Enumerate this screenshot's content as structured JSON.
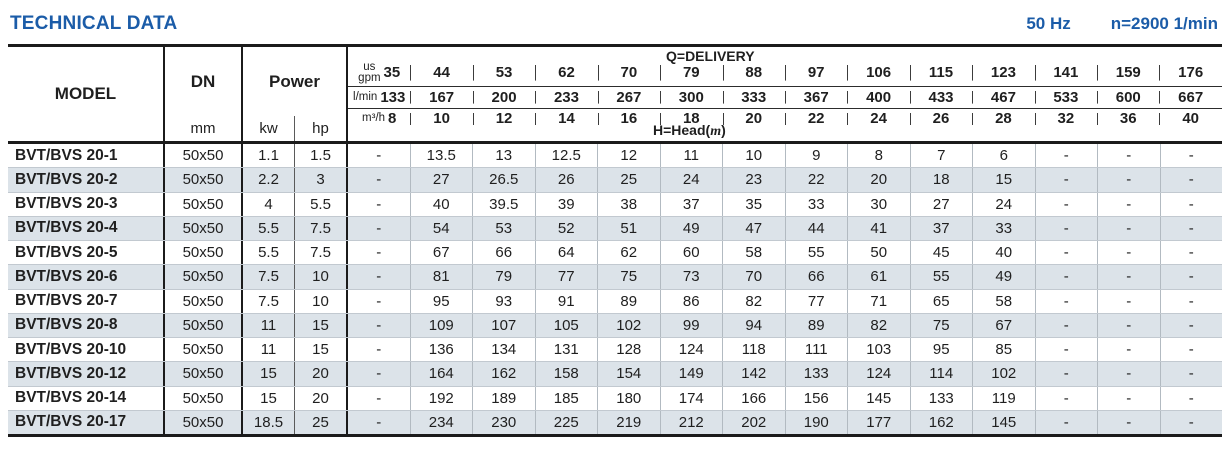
{
  "header": {
    "title": "TECHNICAL DATA",
    "frequency": "50 Hz",
    "speed": "n=2900 1/min"
  },
  "colors": {
    "accent_blue": "#1b5ca8",
    "row_alt": "#dce3e9"
  },
  "table": {
    "model_header": "MODEL",
    "dn_header": "DN",
    "dn_unit": "mm",
    "power_header": "Power",
    "power_unit_kw": "kw",
    "power_unit_hp": "hp",
    "delivery_label": "Q=DELIVERY",
    "head_label_prefix": "H=Head(",
    "head_label_m": "m",
    "head_label_suffix": ")",
    "flow_rows": [
      {
        "unit": "us\ngpm",
        "values": [
          "35",
          "44",
          "53",
          "62",
          "70",
          "79",
          "88",
          "97",
          "106",
          "115",
          "123",
          "141",
          "159",
          "176"
        ]
      },
      {
        "unit": "l/min",
        "values": [
          "133",
          "167",
          "200",
          "233",
          "267",
          "300",
          "333",
          "367",
          "400",
          "433",
          "467",
          "533",
          "600",
          "667"
        ]
      },
      {
        "unit": "m³/h",
        "values": [
          "8",
          "10",
          "12",
          "14",
          "16",
          "18",
          "20",
          "22",
          "24",
          "26",
          "28",
          "32",
          "36",
          "40"
        ]
      }
    ],
    "rows": [
      {
        "model": "BVT/BVS 20-1",
        "dn": "50x50",
        "kw": "1.1",
        "hp": "1.5",
        "head": [
          "-",
          "13.5",
          "13",
          "12.5",
          "12",
          "11",
          "10",
          "9",
          "8",
          "7",
          "6",
          "-",
          "-",
          "-"
        ]
      },
      {
        "model": "BVT/BVS 20-2",
        "dn": "50x50",
        "kw": "2.2",
        "hp": "3",
        "head": [
          "-",
          "27",
          "26.5",
          "26",
          "25",
          "24",
          "23",
          "22",
          "20",
          "18",
          "15",
          "-",
          "-",
          "-"
        ]
      },
      {
        "model": "BVT/BVS 20-3",
        "dn": "50x50",
        "kw": "4",
        "hp": "5.5",
        "head": [
          "-",
          "40",
          "39.5",
          "39",
          "38",
          "37",
          "35",
          "33",
          "30",
          "27",
          "24",
          "-",
          "-",
          "-"
        ]
      },
      {
        "model": "BVT/BVS 20-4",
        "dn": "50x50",
        "kw": "5.5",
        "hp": "7.5",
        "head": [
          "-",
          "54",
          "53",
          "52",
          "51",
          "49",
          "47",
          "44",
          "41",
          "37",
          "33",
          "-",
          "-",
          "-"
        ]
      },
      {
        "model": "BVT/BVS 20-5",
        "dn": "50x50",
        "kw": "5.5",
        "hp": "7.5",
        "head": [
          "-",
          "67",
          "66",
          "64",
          "62",
          "60",
          "58",
          "55",
          "50",
          "45",
          "40",
          "-",
          "-",
          "-"
        ]
      },
      {
        "model": "BVT/BVS 20-6",
        "dn": "50x50",
        "kw": "7.5",
        "hp": "10",
        "head": [
          "-",
          "81",
          "79",
          "77",
          "75",
          "73",
          "70",
          "66",
          "61",
          "55",
          "49",
          "-",
          "-",
          "-"
        ]
      },
      {
        "model": "BVT/BVS 20-7",
        "dn": "50x50",
        "kw": "7.5",
        "hp": "10",
        "head": [
          "-",
          "95",
          "93",
          "91",
          "89",
          "86",
          "82",
          "77",
          "71",
          "65",
          "58",
          "-",
          "-",
          "-"
        ]
      },
      {
        "model": "BVT/BVS 20-8",
        "dn": "50x50",
        "kw": "11",
        "hp": "15",
        "head": [
          "-",
          "109",
          "107",
          "105",
          "102",
          "99",
          "94",
          "89",
          "82",
          "75",
          "67",
          "-",
          "-",
          "-"
        ]
      },
      {
        "model": "BVT/BVS 20-10",
        "dn": "50x50",
        "kw": "11",
        "hp": "15",
        "head": [
          "-",
          "136",
          "134",
          "131",
          "128",
          "124",
          "118",
          "111",
          "103",
          "95",
          "85",
          "-",
          "-",
          "-"
        ]
      },
      {
        "model": "BVT/BVS 20-12",
        "dn": "50x50",
        "kw": "15",
        "hp": "20",
        "head": [
          "-",
          "164",
          "162",
          "158",
          "154",
          "149",
          "142",
          "133",
          "124",
          "114",
          "102",
          "-",
          "-",
          "-"
        ]
      },
      {
        "model": "BVT/BVS 20-14",
        "dn": "50x50",
        "kw": "15",
        "hp": "20",
        "head": [
          "-",
          "192",
          "189",
          "185",
          "180",
          "174",
          "166",
          "156",
          "145",
          "133",
          "119",
          "-",
          "-",
          "-"
        ]
      },
      {
        "model": "BVT/BVS 20-17",
        "dn": "50x50",
        "kw": "18.5",
        "hp": "25",
        "head": [
          "-",
          "234",
          "230",
          "225",
          "219",
          "212",
          "202",
          "190",
          "177",
          "162",
          "145",
          "-",
          "-",
          "-"
        ]
      }
    ]
  }
}
